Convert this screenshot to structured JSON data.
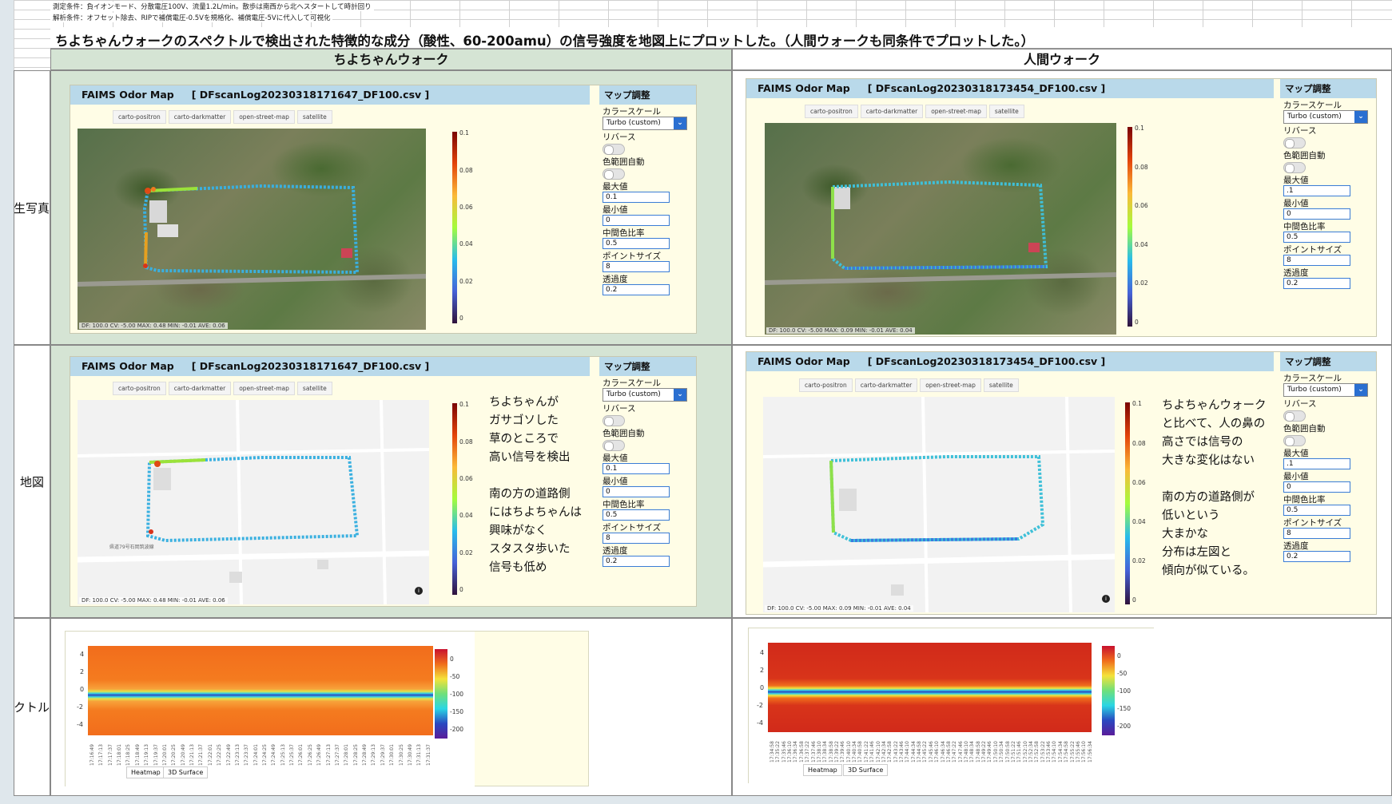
{
  "notes": [
    "測定条件：負イオンモード、分散電圧100V、流量1.2L/min。散歩は南西から北へスタートして時計回り",
    "解析条件：オフセット除去、RIPで補償電圧-0.5Vを規格化、補償電圧-5Vに代入して可視化"
  ],
  "title": "ちよちゃんウォークのスペクトルで検出された特徴的な成分（酸性、60-200amu）の信号強度を地図上にプロットした。（人間ウォークも同条件でプロットした。）",
  "columns": {
    "left": "ちよちゃんウォーク",
    "right": "人間ウォーク"
  },
  "rows": {
    "photo": "衛生写真",
    "map": "地図",
    "spectrum": "スペクトル"
  },
  "app_name": "FAIMS Odor Map",
  "files": {
    "left": "[ DFscanLog20230318171647_DF100.csv ]",
    "right": "[ DFscanLog20230318173454_DF100.csv ]"
  },
  "tabs": [
    "carto-positron",
    "carto-darkmatter",
    "open-street-map",
    "satellite"
  ],
  "footer": {
    "left": "DF: 100.0  CV: -5.00  MAX: 0.48  MIN: -0.01  AVE: 0.06",
    "right": "DF: 100.0  CV: -5.00  MAX: 0.09  MIN: -0.01  AVE: 0.04"
  },
  "attribution": "© 地理院タイル",
  "colorbar": {
    "ticks": [
      "0.1",
      "0.08",
      "0.06",
      "0.04",
      "0.02",
      "0"
    ]
  },
  "controls": {
    "header": "マップ調整",
    "colorscale_label": "カラースケール",
    "colorscale_value": "Turbo (custom)",
    "reverse_label": "リバース",
    "autorange_label": "色範囲自動",
    "max_label": "最大値",
    "min_label": "最小値",
    "mid_label": "中間色比率",
    "point_label": "ポイントサイズ",
    "opacity_label": "透過度",
    "left": {
      "max": "0.1",
      "min": "0",
      "mid": "0.5",
      "point": "8",
      "opacity": "0.2"
    },
    "right": {
      "max": ".1",
      "min": "0",
      "mid": "0.5",
      "point": "8",
      "opacity": "0.2"
    }
  },
  "annotations": {
    "left": "ちよちゃんが\nガサゴソした\n草のところで\n高い信号を検出\n\n南の方の道路側\nにはちよちゃんは\n興味がなく\nスタスタ歩いた\n信号も低め",
    "right": "ちよちゃんウォーク\nと比べて、人の鼻の\n高さでは信号の\n大きな変化はない\n\n南の方の道路側が\n低いという\n大まかな\n分布は左図と\n傾向が似ている。"
  },
  "spectrum": {
    "yticks": [
      "4",
      "2",
      "0",
      "-2",
      "-4"
    ],
    "cticks": [
      "0",
      "-50",
      "-100",
      "-150",
      "-200"
    ],
    "buttons": [
      "Heatmap",
      "3D Surface"
    ],
    "left_xticks": [
      "17:16:49",
      "17:17:13",
      "17:17:37",
      "17:18:01",
      "17:18:25",
      "17:18:49",
      "17:19:13",
      "17:19:37",
      "17:20:01",
      "17:20:25",
      "17:20:49",
      "17:21:13",
      "17:21:37",
      "17:22:01",
      "17:22:25",
      "17:22:49",
      "17:23:13",
      "17:23:37",
      "17:24:01",
      "17:24:25",
      "17:24:49",
      "17:25:13",
      "17:25:37",
      "17:26:01",
      "17:26:25",
      "17:26:49",
      "17:27:13",
      "17:27:37",
      "17:28:01",
      "17:28:25",
      "17:28:49",
      "17:29:13",
      "17:29:37",
      "17:30:01",
      "17:30:25",
      "17:30:49",
      "17:31:13",
      "17:31:37"
    ],
    "right_xticks": [
      "17:34:58",
      "17:35:22",
      "17:35:46",
      "17:36:10",
      "17:36:34",
      "17:36:58",
      "17:37:22",
      "17:37:46",
      "17:38:10",
      "17:38:34",
      "17:38:58",
      "17:39:22",
      "17:39:46",
      "17:40:10",
      "17:40:34",
      "17:40:58",
      "17:41:22",
      "17:41:46",
      "17:42:10",
      "17:42:34",
      "17:42:58",
      "17:43:22",
      "17:43:46",
      "17:44:10",
      "17:44:34",
      "17:44:58",
      "17:45:22",
      "17:45:46",
      "17:46:10",
      "17:46:34",
      "17:46:58",
      "17:47:22",
      "17:47:46",
      "17:48:10",
      "17:48:34",
      "17:48:58",
      "17:49:22",
      "17:49:46",
      "17:50:10",
      "17:50:34",
      "17:50:58",
      "17:51:22",
      "17:51:46",
      "17:52:10",
      "17:52:34",
      "17:52:58",
      "17:53:22",
      "17:53:46",
      "17:54:10",
      "17:54:34",
      "17:54:58",
      "17:55:22",
      "17:55:46",
      "17:56:10",
      "17:56:34"
    ]
  },
  "road_label": "県道79号石岡筑波線"
}
